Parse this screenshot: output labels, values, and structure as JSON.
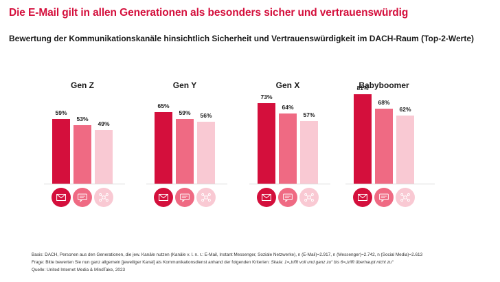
{
  "title": "Die E-Mail gilt in allen Generationen als besonders sicher und vertrauenswürdig",
  "subtitle": "Bewertung der Kommunikationskanäle hinsichtlich Sicherheit und Vertrauenswürdigkeit im DACH-Raum (Top-2-Werte)",
  "colors": {
    "email": "#d40f3c",
    "messenger": "#ef6a83",
    "social": "#f9c9d3",
    "title": "#d40f3c"
  },
  "chart_data": {
    "type": "bar",
    "title": "Bewertung der Kommunikationskanäle hinsichtlich Sicherheit und Vertrauenswürdigkeit im DACH-Raum (Top-2-Werte)",
    "categories": [
      "Gen Z",
      "Gen Y",
      "Gen X",
      "Babyboomer"
    ],
    "series": [
      {
        "name": "E-Mail",
        "icon": "envelope-icon",
        "values": [
          59,
          65,
          73,
          81
        ],
        "labels": [
          "59%",
          "65%",
          "73%",
          "81%"
        ]
      },
      {
        "name": "Instant Messenger",
        "icon": "chat-bubble-icon",
        "values": [
          53,
          59,
          64,
          68
        ],
        "labels": [
          "53%",
          "59%",
          "64%",
          "68%"
        ]
      },
      {
        "name": "Soziale Netzwerke",
        "icon": "network-icon",
        "values": [
          49,
          56,
          57,
          62
        ],
        "labels": [
          "49%",
          "56%",
          "57%",
          "62%"
        ]
      }
    ],
    "ylim": [
      0,
      100
    ],
    "xlabel": "",
    "ylabel": ""
  },
  "footer": {
    "basis": "Basis: DACH, Personen aus den Generationen, die jew. Kanäle nutzen (Kanäle v. l. n. r.: E-Mail, Instant Messenger, Soziale Netzwerke), n (E-Mail)=2.917, n (Messenger)=2.742, n (Social Media)=2.613",
    "frage_prefix": "Frage: Bitte bewerten Sie nun ganz allgemein [jeweiliger Kanal] als Kommunikationsdienst anhand der folgenden Kriterien: ",
    "frage_scale": "Skala: 1=„trifft voll und ganz zu“ bis 6=„trifft überhaupt nicht zu“",
    "quelle": "Quelle: United Internet Media & MindTake, 2023"
  }
}
